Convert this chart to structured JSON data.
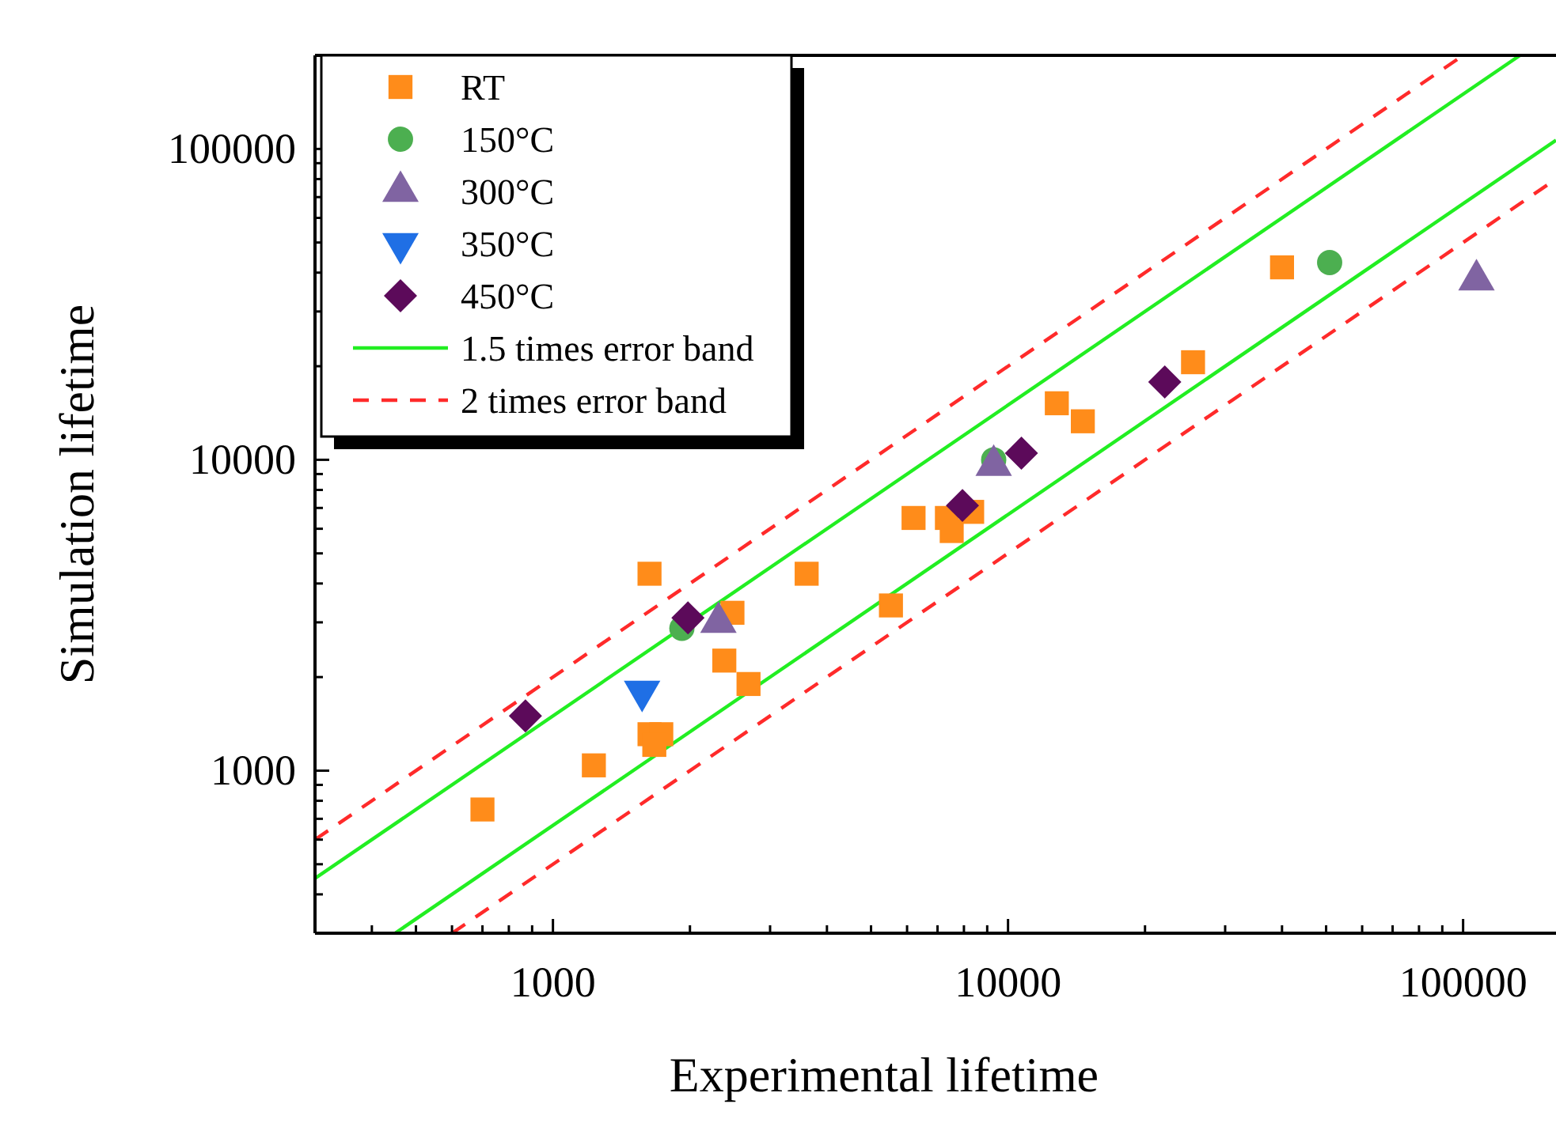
{
  "chart_data": {
    "type": "scatter",
    "xlabel": "Experimental lifetime",
    "ylabel": "Simulation lifetime",
    "log": "xy",
    "xlim": [
      300,
      160000
    ],
    "ylim": [
      300,
      200000
    ],
    "xticks": [
      {
        "value": 400,
        "label": null
      },
      {
        "value": 500,
        "label": null
      },
      {
        "value": 600,
        "label": null
      },
      {
        "value": 700,
        "label": null
      },
      {
        "value": 800,
        "label": null
      },
      {
        "value": 900,
        "label": null
      },
      1000,
      {
        "value": 2000,
        "label": null
      },
      {
        "value": 3000,
        "label": null
      },
      {
        "value": 4000,
        "label": null
      },
      {
        "value": 5000,
        "label": null
      },
      {
        "value": 6000,
        "label": null
      },
      {
        "value": 7000,
        "label": null
      },
      {
        "value": 8000,
        "label": null
      },
      {
        "value": 9000,
        "label": null
      },
      10000,
      {
        "value": 20000,
        "label": null
      },
      {
        "value": 30000,
        "label": null
      },
      {
        "value": 40000,
        "label": null
      },
      {
        "value": 50000,
        "label": null
      },
      {
        "value": 60000,
        "label": null
      },
      {
        "value": 70000,
        "label": null
      },
      {
        "value": 80000,
        "label": null
      },
      {
        "value": 90000,
        "label": null
      },
      100000
    ],
    "yticks": [
      {
        "value": 400,
        "label": null
      },
      {
        "value": 500,
        "label": null
      },
      {
        "value": 600,
        "label": null
      },
      {
        "value": 700,
        "label": null
      },
      {
        "value": 800,
        "label": null
      },
      {
        "value": 900,
        "label": null
      },
      1000,
      {
        "value": 2000,
        "label": null
      },
      {
        "value": 3000,
        "label": null
      },
      {
        "value": 4000,
        "label": null
      },
      {
        "value": 5000,
        "label": null
      },
      {
        "value": 6000,
        "label": null
      },
      {
        "value": 7000,
        "label": null
      },
      {
        "value": 8000,
        "label": null
      },
      {
        "value": 9000,
        "label": null
      },
      10000,
      {
        "value": 20000,
        "label": null
      },
      {
        "value": 30000,
        "label": null
      },
      {
        "value": 40000,
        "label": null
      },
      {
        "value": 50000,
        "label": null
      },
      {
        "value": 60000,
        "label": null
      },
      {
        "value": 70000,
        "label": null
      },
      {
        "value": 80000,
        "label": null
      },
      {
        "value": 90000,
        "label": null
      },
      100000
    ],
    "legend": "top left",
    "grid": false,
    "series": [
      {
        "name": "RT",
        "marker": "square",
        "color": "#ff8c1a",
        "x": [
          700,
          1230,
          1630,
          1630,
          1730,
          1670,
          2480,
          2380,
          2690,
          3610,
          5530,
          6200,
          7340,
          7520,
          8340,
          12800,
          14600,
          25500,
          40000
        ],
        "values": [
          750,
          1040,
          4300,
          1310,
          1310,
          1210,
          3220,
          2260,
          1900,
          4300,
          3400,
          6500,
          6500,
          5900,
          6800,
          15200,
          13300,
          20600,
          41600
        ]
      },
      {
        "name": "150°C",
        "marker": "circle",
        "color": "#4caf50",
        "x": [
          1920,
          9300,
          50900
        ],
        "values": [
          2870,
          10000,
          43100
        ]
      },
      {
        "name": "300°C",
        "marker": "triangle",
        "color": "#8064a2",
        "x": [
          2310,
          9300,
          107000
        ],
        "values": [
          3000,
          9600,
          37900
        ]
      },
      {
        "name": "350°C",
        "marker": "triangle-down",
        "color": "#1f6fe5",
        "x": [
          1570
        ],
        "values": [
          1800
        ]
      },
      {
        "name": "450°C",
        "marker": "diamond",
        "color": "#5c0a5a",
        "x": [
          870,
          1980,
          7940,
          10700,
          22100
        ],
        "values": [
          1500,
          3100,
          7130,
          10500,
          17800
        ]
      },
      {
        "name": "1.5 times error band",
        "type": "line",
        "line_style": "solid",
        "color": "#22ee22",
        "x": [
          300,
          133333
        ],
        "values": [
          450,
          200000
        ]
      },
      {
        "type": "line",
        "line_style": "solid",
        "color": "#22ee22",
        "x": [
          450,
          160000
        ],
        "values": [
          300,
          106667
        ]
      },
      {
        "name": "2 times error band",
        "type": "line",
        "line_style": "dashed",
        "color": "#ff2a2a",
        "x": [
          300,
          100000
        ],
        "values": [
          600,
          200000
        ]
      },
      {
        "type": "line",
        "line_style": "dashed",
        "color": "#ff2a2a",
        "x": [
          600,
          160000
        ],
        "values": [
          300,
          80000
        ]
      }
    ]
  }
}
